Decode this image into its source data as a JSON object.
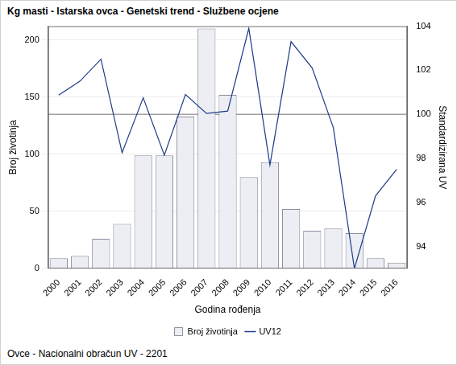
{
  "chart_data": {
    "type": "bar",
    "title": "Kg masti - Istarska ovca - Genetski trend - Službene ocjene",
    "footnote": "Ovce - Nacionalni obračun UV - 2201",
    "x_label": "Godina rođenja",
    "y_label": "Broj životinja",
    "y2_label": "Standardizirana UV",
    "categories": [
      "2000",
      "2001",
      "2002",
      "2003",
      "2004",
      "2005",
      "2006",
      "2007",
      "2008",
      "2009",
      "2010",
      "2011",
      "2012",
      "2013",
      "2014",
      "2015",
      "2016"
    ],
    "series": [
      {
        "name": "Broj životinja",
        "type": "bar",
        "color": "#eceef4",
        "values": [
          9,
          11,
          26,
          39,
          99,
          99,
          133,
          210,
          152,
          80,
          93,
          52,
          33,
          35,
          31,
          9,
          5
        ]
      },
      {
        "name": "UV12",
        "type": "line",
        "axis": "y2",
        "color": "#1f3a8a",
        "marker": "none",
        "values": [
          100.87,
          101.5,
          102.5,
          98.26,
          100.75,
          98.15,
          100.9,
          100.04,
          100.15,
          103.9,
          97.7,
          103.3,
          102.1,
          99.4,
          93.0,
          96.3,
          97.5
        ]
      }
    ],
    "ylim": [
      0,
      212
    ],
    "yticks": [
      0,
      50,
      100,
      150,
      200
    ],
    "y2lim": [
      93,
      104
    ],
    "y2ticks": [
      94,
      96,
      98,
      100,
      102,
      104
    ],
    "reference_line": {
      "value": 100,
      "axis": "y2",
      "color": "#a0a0a0"
    },
    "grid": true,
    "legend": "bottom"
  }
}
